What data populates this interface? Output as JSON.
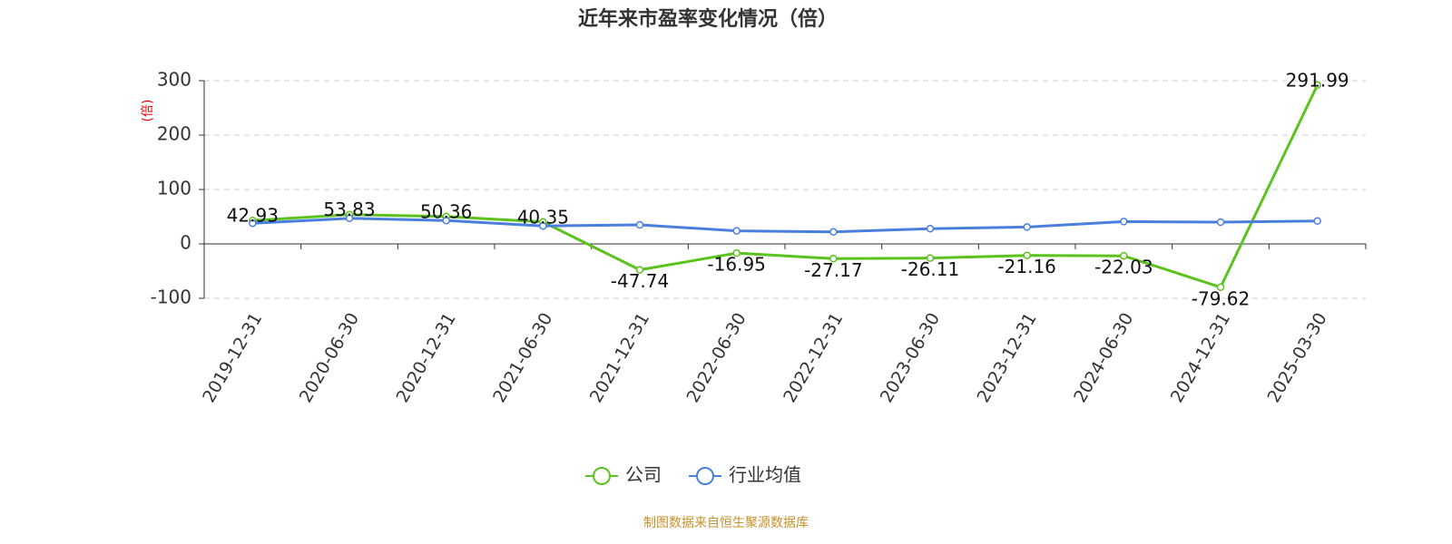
{
  "chart_data": {
    "type": "line",
    "title": "近年来市盈率变化情况（倍）",
    "y_label": "(倍)",
    "categories": [
      "2019-12-31",
      "2020-06-30",
      "2020-12-31",
      "2021-06-30",
      "2021-12-31",
      "2022-06-30",
      "2022-12-31",
      "2023-06-30",
      "2023-12-31",
      "2024-06-30",
      "2024-12-31",
      "2025-03-30"
    ],
    "series": [
      {
        "name": "公司",
        "color": "#5bc21e",
        "values": [
          42.93,
          53.83,
          50.36,
          40.35,
          -47.74,
          -16.95,
          -27.17,
          -26.11,
          -21.16,
          -22.03,
          -79.62,
          291.99
        ],
        "show_labels": true
      },
      {
        "name": "行业均值",
        "color": "#4a7fde",
        "values": [
          38,
          47,
          43,
          33,
          35,
          24,
          22,
          28,
          31,
          41,
          40,
          42
        ],
        "show_labels": false
      }
    ],
    "ylim": [
      -100,
      300
    ],
    "yticks": [
      -100,
      0,
      100,
      200,
      300
    ],
    "grid": true,
    "source": "制图数据来自恒生聚源数据库"
  }
}
